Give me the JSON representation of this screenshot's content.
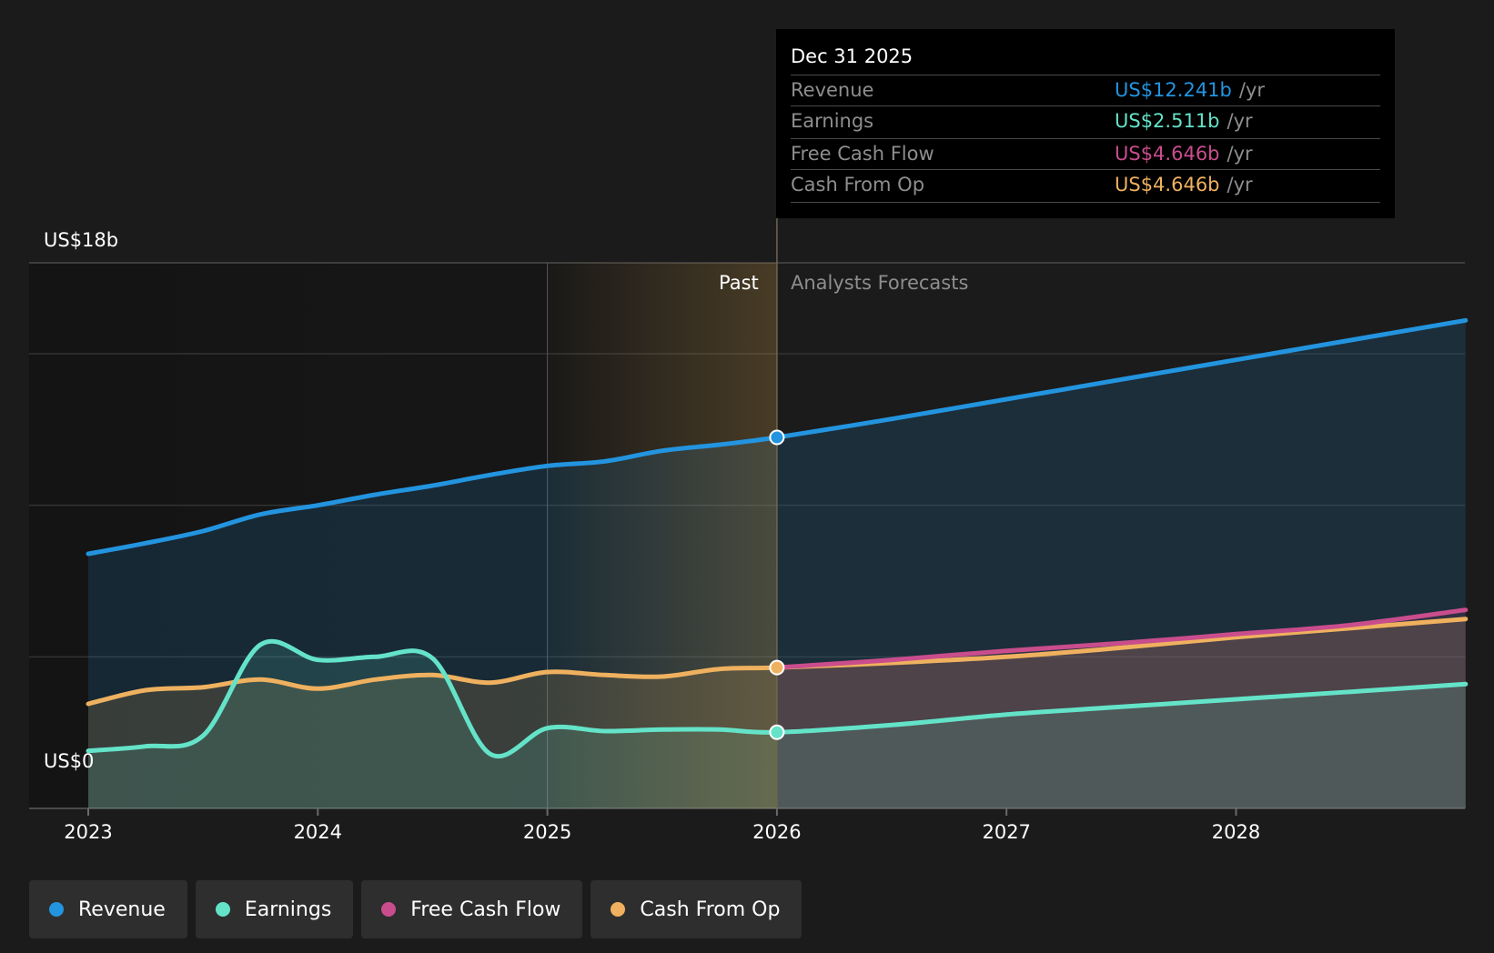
{
  "tooltip": {
    "date": "Dec 31 2025",
    "rows": [
      {
        "label": "Revenue",
        "value": "US$12.241b",
        "unit": "/yr",
        "color": "#2394df"
      },
      {
        "label": "Earnings",
        "value": "US$2.511b",
        "unit": "/yr",
        "color": "#64e3c8"
      },
      {
        "label": "Free Cash Flow",
        "value": "US$4.646b",
        "unit": "/yr",
        "color": "#c94d8d"
      },
      {
        "label": "Cash From Op",
        "value": "US$4.646b",
        "unit": "/yr",
        "color": "#efb15f"
      }
    ]
  },
  "labels": {
    "y_top": "US$18b",
    "y_bottom": "US$0",
    "past": "Past",
    "forecast": "Analysts Forecasts"
  },
  "legend": [
    {
      "label": "Revenue",
      "color": "#2394df"
    },
    {
      "label": "Earnings",
      "color": "#64e3c8"
    },
    {
      "label": "Free Cash Flow",
      "color": "#c94d8d"
    },
    {
      "label": "Cash From Op",
      "color": "#efb15f"
    }
  ],
  "chart_data": {
    "type": "line",
    "ylim": [
      0,
      18
    ],
    "y_unit": "US$ billions",
    "x_ticks": [
      2023,
      2024,
      2025,
      2026,
      2027,
      2028
    ],
    "x_range": [
      2022.75,
      2029.0
    ],
    "divider_x": 2026.0,
    "past_highlight_start": 2025.0,
    "series": [
      {
        "name": "Revenue",
        "color": "#2394df",
        "x": [
          2023.0,
          2023.25,
          2023.5,
          2023.75,
          2024.0,
          2024.25,
          2024.5,
          2024.75,
          2025.0,
          2025.25,
          2025.5,
          2025.75,
          2026.0,
          2026.5,
          2027.0,
          2027.5,
          2028.0,
          2028.5,
          2029.0
        ],
        "y": [
          8.4,
          8.75,
          9.15,
          9.7,
          10.0,
          10.35,
          10.65,
          11.0,
          11.3,
          11.45,
          11.8,
          12.0,
          12.241,
          12.85,
          13.5,
          14.15,
          14.8,
          15.45,
          16.1
        ]
      },
      {
        "name": "Earnings",
        "color": "#64e3c8",
        "x": [
          2023.0,
          2023.25,
          2023.5,
          2023.75,
          2024.0,
          2024.25,
          2024.5,
          2024.75,
          2025.0,
          2025.25,
          2025.5,
          2025.75,
          2026.0,
          2026.5,
          2027.0,
          2027.5,
          2028.0,
          2028.5,
          2029.0
        ],
        "y": [
          1.9,
          2.05,
          2.4,
          5.4,
          4.9,
          5.0,
          4.95,
          1.8,
          2.65,
          2.55,
          2.6,
          2.6,
          2.511,
          2.75,
          3.1,
          3.35,
          3.6,
          3.85,
          4.1
        ]
      },
      {
        "name": "Free Cash Flow",
        "color": "#c94d8d",
        "x": [
          2026.0,
          2026.5,
          2027.0,
          2027.5,
          2028.0,
          2028.5,
          2029.0
        ],
        "y": [
          4.646,
          4.9,
          5.2,
          5.45,
          5.75,
          6.05,
          6.55
        ]
      },
      {
        "name": "Cash From Op",
        "color": "#efb15f",
        "x": [
          2023.0,
          2023.25,
          2023.5,
          2023.75,
          2024.0,
          2024.25,
          2024.5,
          2024.75,
          2025.0,
          2025.25,
          2025.5,
          2025.75,
          2026.0,
          2026.5,
          2027.0,
          2027.5,
          2028.0,
          2028.5,
          2029.0
        ],
        "y": [
          3.45,
          3.9,
          4.0,
          4.25,
          3.95,
          4.25,
          4.4,
          4.15,
          4.5,
          4.4,
          4.35,
          4.6,
          4.646,
          4.8,
          5.0,
          5.3,
          5.65,
          5.95,
          6.25
        ]
      }
    ]
  }
}
